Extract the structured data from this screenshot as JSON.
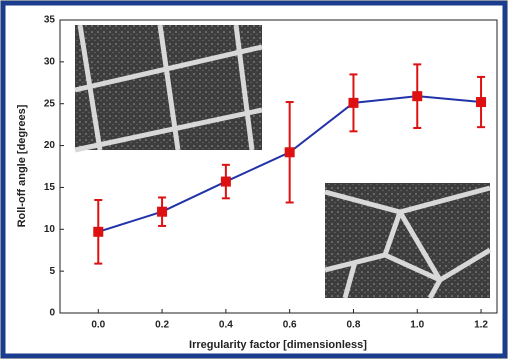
{
  "chart_data": {
    "type": "line",
    "x_label": "Irregularity factor [dimensionless]",
    "y_label": "Roll-off angle [degrees]",
    "x": [
      0.0,
      0.2,
      0.4,
      0.6,
      0.8,
      1.0,
      1.2
    ],
    "series": [
      {
        "color": "#2233aa",
        "marker_color": "#dd1111",
        "values": [
          9.7,
          12.1,
          15.7,
          19.2,
          25.1,
          25.9,
          25.2
        ],
        "errors": [
          3.8,
          1.7,
          2.0,
          6.0,
          3.4,
          3.8,
          3.0
        ]
      }
    ],
    "xlim": [
      -0.12,
      1.25
    ],
    "ylim": [
      0,
      35
    ],
    "xticks": [
      {
        "value": 0.0,
        "label": "0.0"
      },
      {
        "value": 0.2,
        "label": "0.2"
      },
      {
        "value": 0.4,
        "label": "0.4"
      },
      {
        "value": 0.6,
        "label": "0.6"
      },
      {
        "value": 0.8,
        "label": "0.8"
      },
      {
        "value": 1.0,
        "label": "1.0"
      },
      {
        "value": 1.2,
        "label": "1.2"
      }
    ],
    "yticks": [
      0,
      5,
      10,
      15,
      20,
      25,
      30,
      35
    ]
  }
}
